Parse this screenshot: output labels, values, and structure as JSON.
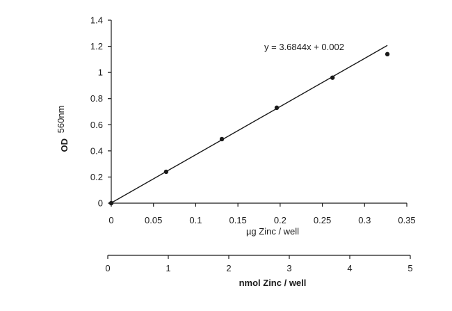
{
  "chart_data": {
    "type": "scatter",
    "y_axis": {
      "label_main": "OD",
      "label_sub": "560nm",
      "range": [
        0,
        1.4
      ],
      "ticks": [
        "0",
        "0.2",
        "0.4",
        "0.6",
        "0.8",
        "1",
        "1.2",
        "1.4"
      ]
    },
    "x_axis_primary": {
      "label": "µg Zinc / well",
      "range": [
        0,
        0.35
      ],
      "ticks": [
        "0",
        "0.05",
        "0.1",
        "0.15",
        "0.2",
        "0.25",
        "0.3",
        "0.35"
      ]
    },
    "x_axis_secondary": {
      "label": "nmol Zinc / well",
      "range": [
        0,
        5
      ],
      "ticks": [
        "0",
        "1",
        "2",
        "3",
        "4",
        "5"
      ]
    },
    "series": [
      {
        "x": [
          0,
          0.065,
          0.131,
          0.196,
          0.262,
          0.327
        ],
        "y": [
          0,
          0.24,
          0.49,
          0.73,
          0.96,
          1.14
        ]
      }
    ],
    "trendline": {
      "slope": 3.6844,
      "intercept": 0.002,
      "x_range": [
        0,
        0.327
      ],
      "equation": "y = 3.6844x + 0.002"
    },
    "grid": false,
    "colors": {
      "ink": "#1a1a1a"
    }
  }
}
